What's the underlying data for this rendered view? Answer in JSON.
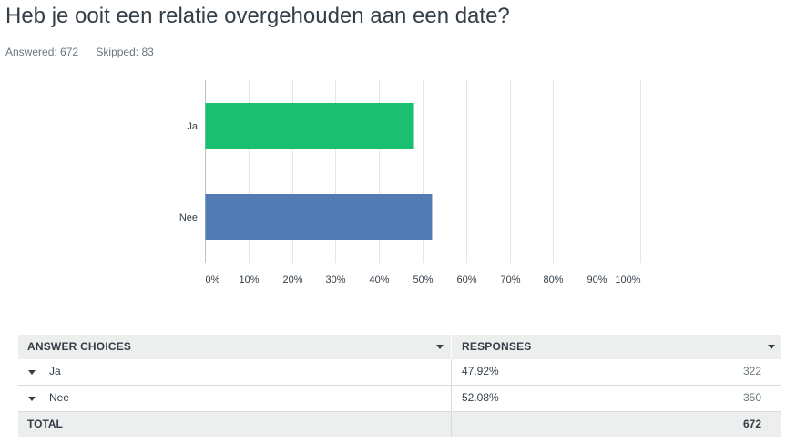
{
  "question": {
    "title": "Heb je ooit een relatie overgehouden aan een date?",
    "answered": "Answered: 672",
    "skipped": "Skipped: 83"
  },
  "chart_data": {
    "type": "bar",
    "orientation": "horizontal",
    "title": "Heb je ooit een relatie overgehouden aan een date?",
    "categories": [
      "Ja",
      "Nee"
    ],
    "values": [
      47.92,
      52.08
    ],
    "colors": [
      "#1abf6f",
      "#517bb2"
    ],
    "xlim": [
      0,
      100
    ],
    "xticks": [
      "0%",
      "10%",
      "20%",
      "30%",
      "40%",
      "50%",
      "60%",
      "70%",
      "80%",
      "90%",
      "100%"
    ],
    "grid": true
  },
  "table": {
    "header": {
      "choices": "ANSWER CHOICES",
      "responses": "RESPONSES"
    },
    "rows": [
      {
        "choice": "Ja",
        "percent": "47.92%",
        "count": "322"
      },
      {
        "choice": "Nee",
        "percent": "52.08%",
        "count": "350"
      }
    ],
    "total": {
      "label": "TOTAL",
      "count": "672"
    }
  }
}
